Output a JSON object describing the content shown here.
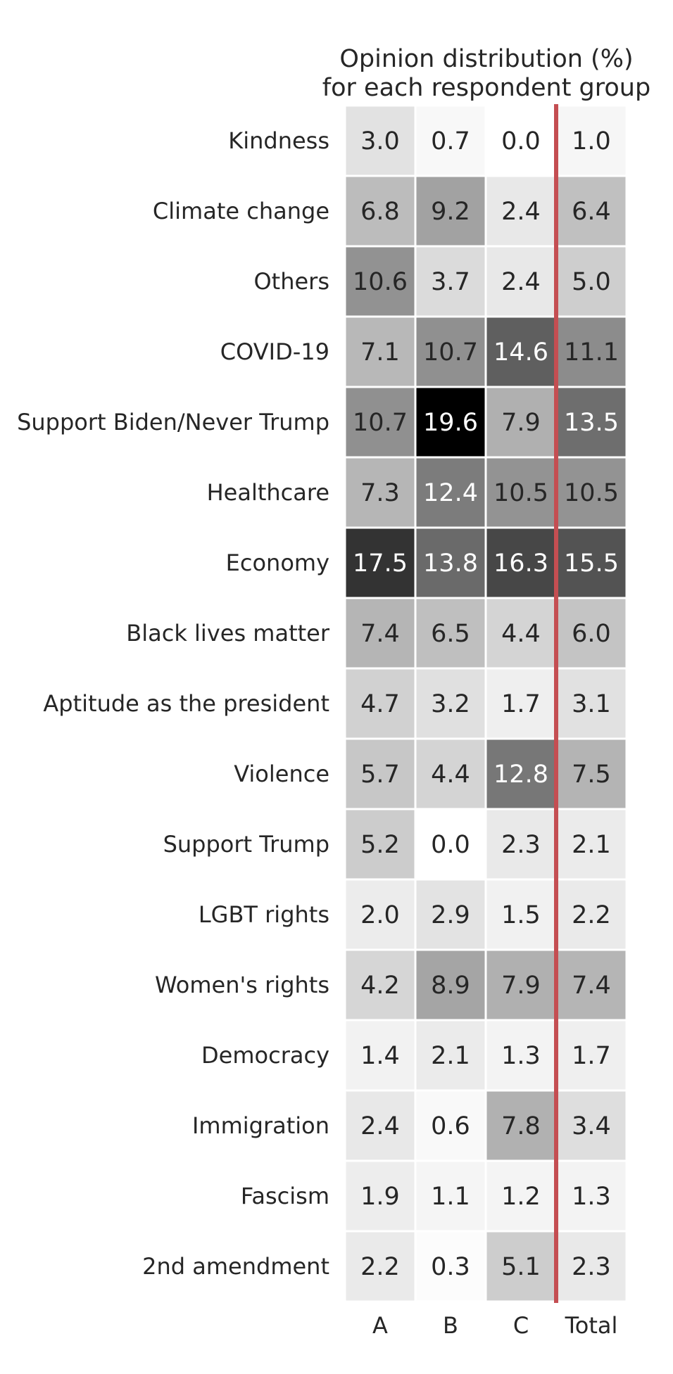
{
  "chart_data": {
    "type": "heatmap",
    "title_lines": [
      "Opinion distribution (%)",
      "for each respondent group"
    ],
    "columns": [
      "A",
      "B",
      "C",
      "Total"
    ],
    "rows": [
      "Kindness",
      "Climate change",
      "Others",
      "COVID-19",
      "Support Biden/Never Trump",
      "Healthcare",
      "Economy",
      "Black lives matter",
      "Aptitude as the president",
      "Violence",
      "Support Trump",
      "LGBT rights",
      "Women's rights",
      "Democracy",
      "Immigration",
      "Fascism",
      "2nd amendment"
    ],
    "values": [
      [
        3.0,
        0.7,
        0.0,
        1.0
      ],
      [
        6.8,
        9.2,
        2.4,
        6.4
      ],
      [
        10.6,
        3.7,
        2.4,
        5.0
      ],
      [
        7.1,
        10.7,
        14.6,
        11.1
      ],
      [
        10.7,
        19.6,
        7.9,
        13.5
      ],
      [
        7.3,
        12.4,
        10.5,
        10.5
      ],
      [
        17.5,
        13.8,
        16.3,
        15.5
      ],
      [
        7.4,
        6.5,
        4.4,
        6.0
      ],
      [
        4.7,
        3.2,
        1.7,
        3.1
      ],
      [
        5.7,
        4.4,
        12.8,
        7.5
      ],
      [
        5.2,
        0.0,
        2.3,
        2.1
      ],
      [
        2.0,
        2.9,
        1.5,
        2.2
      ],
      [
        4.2,
        8.9,
        7.9,
        7.4
      ],
      [
        1.4,
        2.1,
        1.3,
        1.7
      ],
      [
        2.4,
        0.6,
        7.8,
        3.4
      ],
      [
        1.9,
        1.1,
        1.2,
        1.3
      ],
      [
        2.2,
        0.3,
        5.1,
        2.3
      ]
    ],
    "color_range": [
      0,
      19.6
    ],
    "colormap": "Greys",
    "separator_before_column": "Total",
    "separator_color": "#c44e52",
    "cell_gap_color": "#ffffff"
  }
}
